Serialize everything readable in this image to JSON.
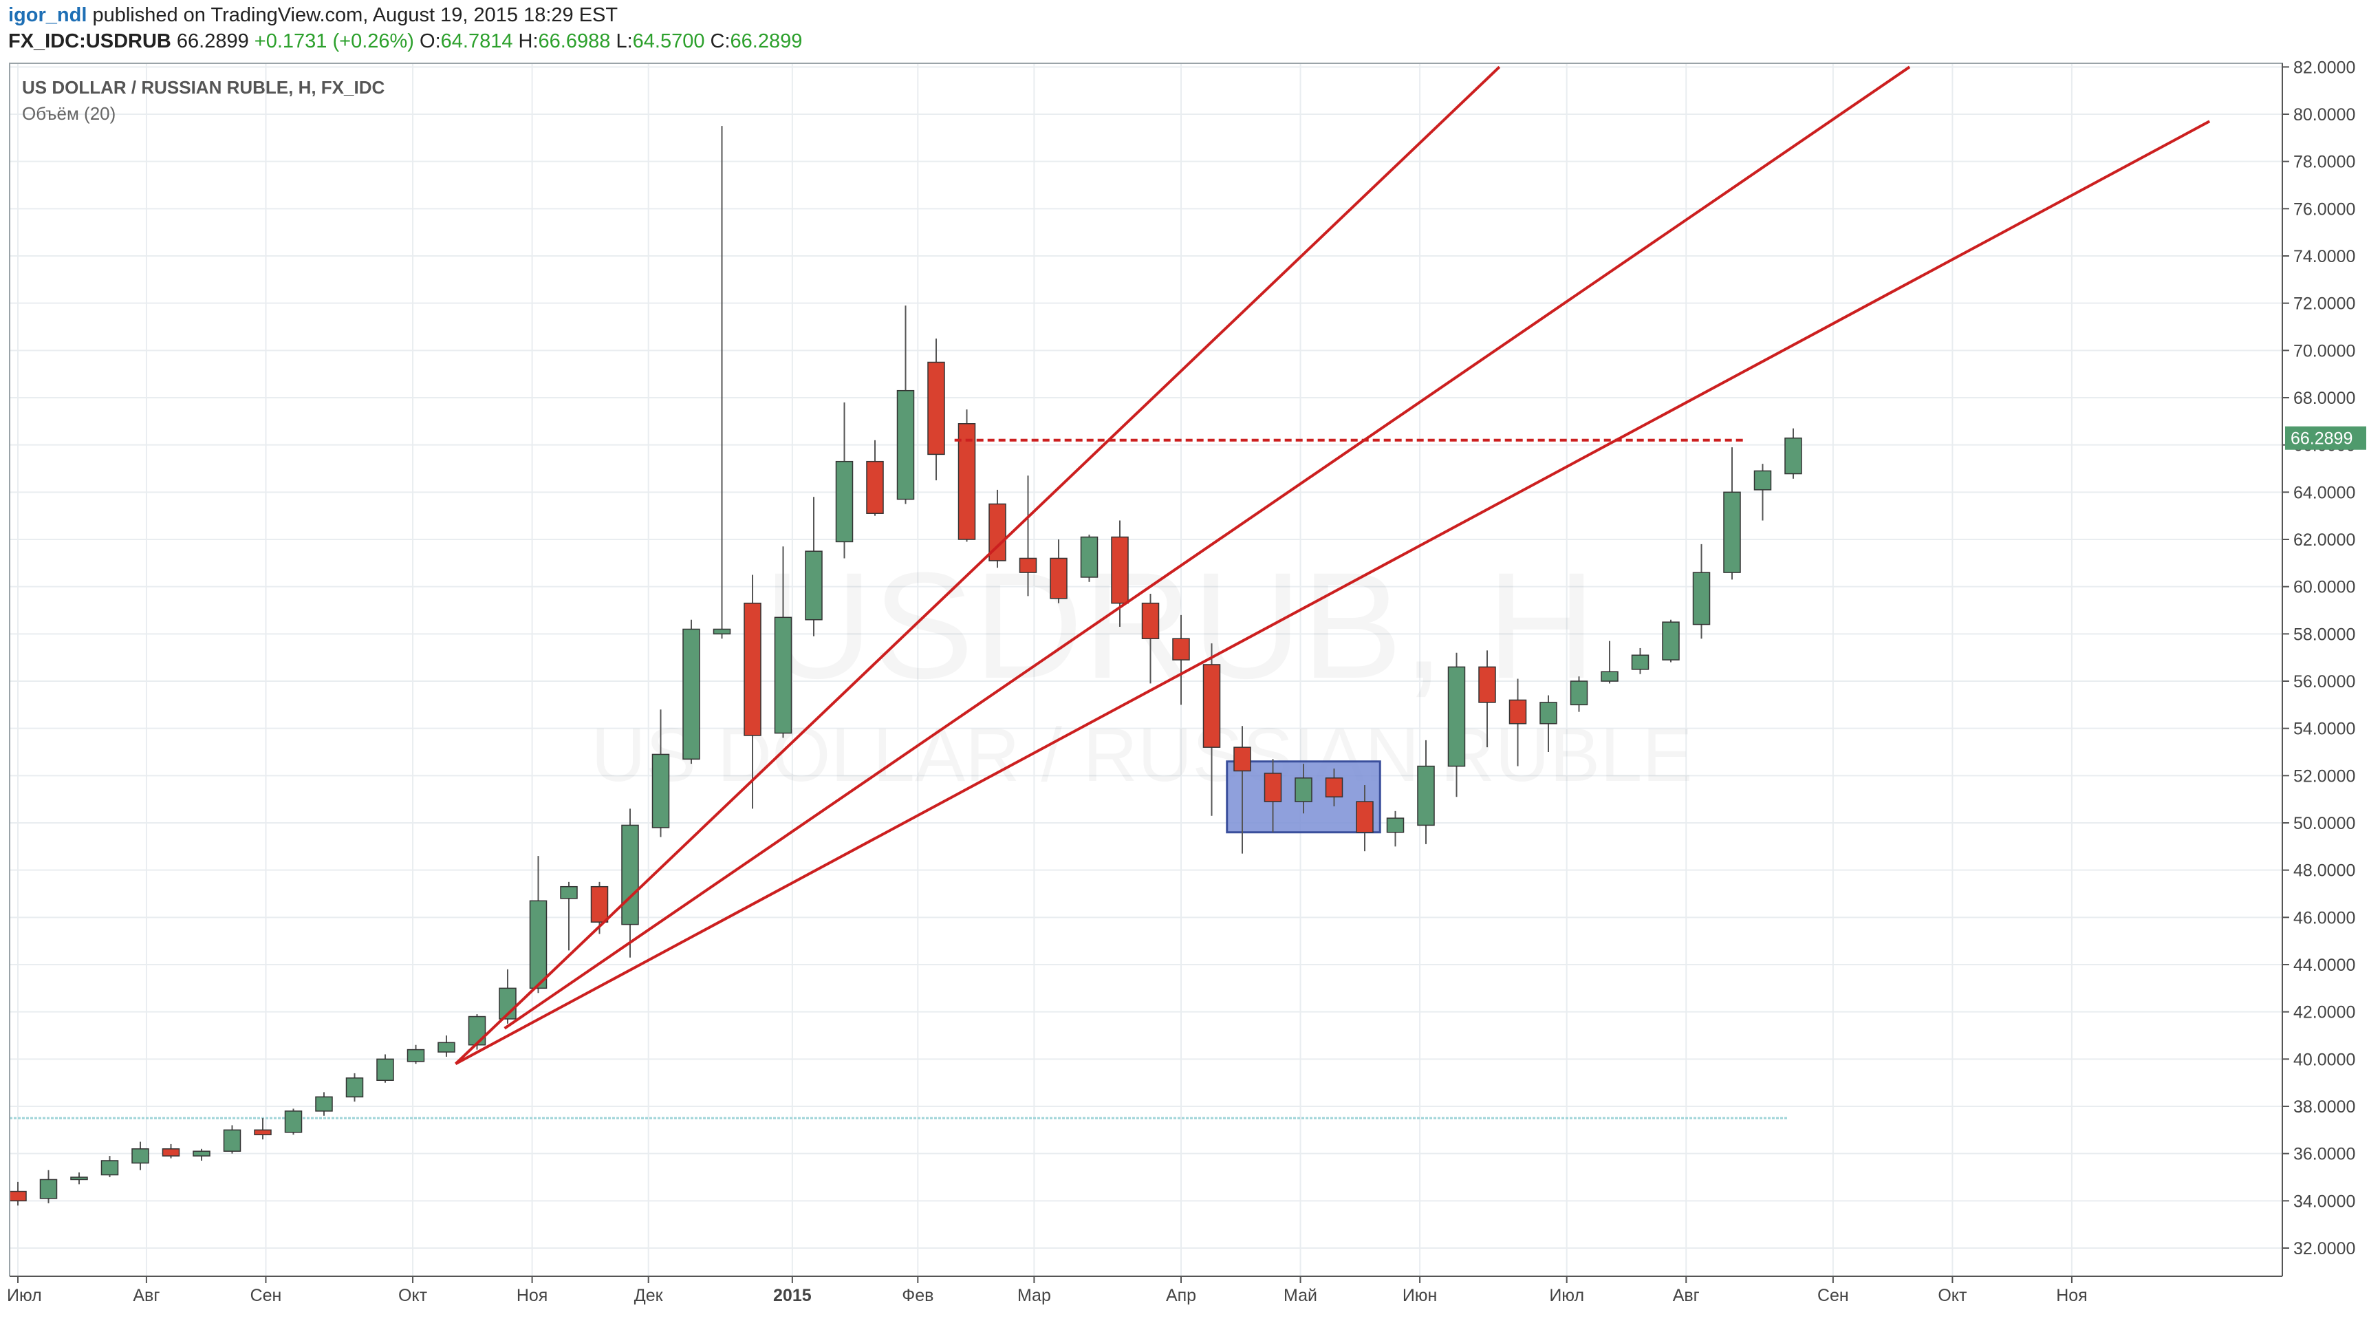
{
  "header": {
    "author": "igor_ndl",
    "published_text": "published on TradingView.com, August 19, 2015 18:29 EST",
    "symbol": "FX_IDC:USDRUB",
    "last": "66.2899",
    "change": "+0.1731 (+0.26%)",
    "o_label": "O:",
    "o_value": "64.7814",
    "h_label": "H:",
    "h_value": "66.6988",
    "l_label": "L:",
    "l_value": "64.5700",
    "c_label": "C:",
    "c_value": "66.2899"
  },
  "legend": {
    "title": "US DOLLAR / RUSSIAN RUBLE, H, FX_IDC",
    "indicator": "Объём (20)"
  },
  "watermark": {
    "symbol": "USDRUB, H",
    "name": "US DOLLAR / RUSSIAN RUBLE"
  },
  "colors": {
    "up": "#5b9a74",
    "down": "#d9412f",
    "trendline": "#cc1f1f",
    "box_fill": "#7b8fd6",
    "price_label_bg": "#4f9a6c"
  },
  "chart_data": {
    "type": "candlestick",
    "title": "US DOLLAR / RUSSIAN RUBLE, H, FX_IDC",
    "ylim": [
      31,
      82
    ],
    "y_ticks": [
      "32.0000",
      "34.0000",
      "36.0000",
      "38.0000",
      "40.0000",
      "42.0000",
      "44.0000",
      "46.0000",
      "48.0000",
      "50.0000",
      "52.0000",
      "54.0000",
      "56.0000",
      "58.0000",
      "60.0000",
      "62.0000",
      "64.0000",
      "66.0000",
      "68.0000",
      "70.0000",
      "72.0000",
      "74.0000",
      "76.0000",
      "78.0000",
      "80.0000",
      "82.0000"
    ],
    "x_ticks": [
      {
        "label": "Июл",
        "bar": 0
      },
      {
        "label": "Авг",
        "bar": 4.2
      },
      {
        "label": "Сен",
        "bar": 8.1
      },
      {
        "label": "Окт",
        "bar": 12.9
      },
      {
        "label": "Ноя",
        "bar": 16.8
      },
      {
        "label": "Дек",
        "bar": 20.6
      },
      {
        "label": "2015",
        "bar": 25.3
      },
      {
        "label": "Фев",
        "bar": 29.4
      },
      {
        "label": "Мар",
        "bar": 33.2
      },
      {
        "label": "Апр",
        "bar": 38.0
      },
      {
        "label": "Май",
        "bar": 41.9
      },
      {
        "label": "Июн",
        "bar": 45.8
      },
      {
        "label": "Июл",
        "bar": 50.6
      },
      {
        "label": "Авг",
        "bar": 54.5
      },
      {
        "label": "Сен",
        "bar": 59.3
      },
      {
        "label": "Окт",
        "bar": 63.2
      },
      {
        "label": "Ноя",
        "bar": 67.1
      }
    ],
    "bars_per_label_spacing": "weekly",
    "candles": [
      {
        "o": 34.4,
        "h": 34.8,
        "l": 33.8,
        "c": 34.0
      },
      {
        "o": 34.1,
        "h": 35.3,
        "l": 33.9,
        "c": 34.9
      },
      {
        "o": 34.9,
        "h": 35.2,
        "l": 34.7,
        "c": 35.0
      },
      {
        "o": 35.1,
        "h": 35.9,
        "l": 35.0,
        "c": 35.7
      },
      {
        "o": 35.6,
        "h": 36.5,
        "l": 35.3,
        "c": 36.2
      },
      {
        "o": 36.2,
        "h": 36.4,
        "l": 35.8,
        "c": 35.9
      },
      {
        "o": 35.9,
        "h": 36.2,
        "l": 35.7,
        "c": 36.1
      },
      {
        "o": 36.1,
        "h": 37.2,
        "l": 36.0,
        "c": 37.0
      },
      {
        "o": 37.0,
        "h": 37.5,
        "l": 36.6,
        "c": 36.8
      },
      {
        "o": 36.9,
        "h": 37.9,
        "l": 36.8,
        "c": 37.8
      },
      {
        "o": 37.8,
        "h": 38.6,
        "l": 37.6,
        "c": 38.4
      },
      {
        "o": 38.4,
        "h": 39.4,
        "l": 38.2,
        "c": 39.2
      },
      {
        "o": 39.1,
        "h": 40.2,
        "l": 39.0,
        "c": 40.0
      },
      {
        "o": 39.9,
        "h": 40.6,
        "l": 39.8,
        "c": 40.4
      },
      {
        "o": 40.3,
        "h": 41.0,
        "l": 40.1,
        "c": 40.7
      },
      {
        "o": 40.6,
        "h": 41.9,
        "l": 40.4,
        "c": 41.8
      },
      {
        "o": 41.7,
        "h": 43.8,
        "l": 41.5,
        "c": 43.0
      },
      {
        "o": 43.0,
        "h": 48.6,
        "l": 42.8,
        "c": 46.7
      },
      {
        "o": 46.8,
        "h": 47.5,
        "l": 44.6,
        "c": 47.3
      },
      {
        "o": 47.3,
        "h": 47.5,
        "l": 45.3,
        "c": 45.8
      },
      {
        "o": 45.7,
        "h": 50.6,
        "l": 44.3,
        "c": 49.9
      },
      {
        "o": 49.8,
        "h": 54.8,
        "l": 49.4,
        "c": 52.9
      },
      {
        "o": 52.7,
        "h": 58.6,
        "l": 52.5,
        "c": 58.2
      },
      {
        "o": 58.0,
        "h": 79.5,
        "l": 57.8,
        "c": 58.2
      },
      {
        "o": 59.3,
        "h": 60.5,
        "l": 50.6,
        "c": 53.7
      },
      {
        "o": 53.8,
        "h": 61.7,
        "l": 53.6,
        "c": 58.7
      },
      {
        "o": 58.6,
        "h": 63.8,
        "l": 57.9,
        "c": 61.5
      },
      {
        "o": 61.9,
        "h": 67.8,
        "l": 61.2,
        "c": 65.3
      },
      {
        "o": 65.3,
        "h": 66.2,
        "l": 63.0,
        "c": 63.1
      },
      {
        "o": 63.7,
        "h": 71.9,
        "l": 63.5,
        "c": 68.3
      },
      {
        "o": 69.5,
        "h": 70.5,
        "l": 64.5,
        "c": 65.6
      },
      {
        "o": 66.9,
        "h": 67.5,
        "l": 61.9,
        "c": 62.0
      },
      {
        "o": 63.5,
        "h": 64.1,
        "l": 60.8,
        "c": 61.1
      },
      {
        "o": 61.2,
        "h": 64.7,
        "l": 59.6,
        "c": 60.6
      },
      {
        "o": 61.2,
        "h": 62.0,
        "l": 59.3,
        "c": 59.5
      },
      {
        "o": 60.4,
        "h": 62.2,
        "l": 60.2,
        "c": 62.1
      },
      {
        "o": 62.1,
        "h": 62.8,
        "l": 58.3,
        "c": 59.3
      },
      {
        "o": 59.3,
        "h": 59.7,
        "l": 55.9,
        "c": 57.8
      },
      {
        "o": 57.8,
        "h": 58.8,
        "l": 55.0,
        "c": 56.9
      },
      {
        "o": 56.7,
        "h": 57.6,
        "l": 50.3,
        "c": 53.2
      },
      {
        "o": 53.2,
        "h": 54.1,
        "l": 48.7,
        "c": 52.2
      },
      {
        "o": 52.1,
        "h": 52.7,
        "l": 49.6,
        "c": 50.9
      },
      {
        "o": 50.9,
        "h": 52.5,
        "l": 50.4,
        "c": 51.9
      },
      {
        "o": 51.9,
        "h": 52.3,
        "l": 50.7,
        "c": 51.1
      },
      {
        "o": 50.9,
        "h": 51.6,
        "l": 48.8,
        "c": 49.6
      },
      {
        "o": 49.6,
        "h": 50.5,
        "l": 49.0,
        "c": 50.2
      },
      {
        "o": 49.9,
        "h": 53.5,
        "l": 49.1,
        "c": 52.4
      },
      {
        "o": 52.4,
        "h": 57.2,
        "l": 51.1,
        "c": 56.6
      },
      {
        "o": 56.6,
        "h": 57.3,
        "l": 53.2,
        "c": 55.1
      },
      {
        "o": 55.2,
        "h": 56.1,
        "l": 52.4,
        "c": 54.2
      },
      {
        "o": 54.2,
        "h": 55.4,
        "l": 53.0,
        "c": 55.1
      },
      {
        "o": 55.0,
        "h": 56.2,
        "l": 54.7,
        "c": 56.0
      },
      {
        "o": 56.0,
        "h": 57.7,
        "l": 55.9,
        "c": 56.4
      },
      {
        "o": 56.5,
        "h": 57.4,
        "l": 56.3,
        "c": 57.1
      },
      {
        "o": 56.9,
        "h": 58.6,
        "l": 56.8,
        "c": 58.5
      },
      {
        "o": 58.4,
        "h": 61.8,
        "l": 57.8,
        "c": 60.6
      },
      {
        "o": 60.6,
        "h": 65.9,
        "l": 60.3,
        "c": 64.0
      },
      {
        "o": 64.1,
        "h": 65.2,
        "l": 62.8,
        "c": 64.9
      },
      {
        "o": 64.78,
        "h": 66.7,
        "l": 64.57,
        "c": 66.29
      }
    ],
    "trendlines": [
      {
        "from": {
          "bar": 14.3,
          "price": 39.8
        },
        "to": {
          "bar": 48.4,
          "price": 82.0
        }
      },
      {
        "from": {
          "bar": 15.9,
          "price": 41.3
        },
        "to": {
          "bar": 61.8,
          "price": 82.0
        }
      },
      {
        "from": {
          "bar": 14.3,
          "price": 39.8
        },
        "to": {
          "bar": 71.6,
          "price": 79.7
        }
      }
    ],
    "dashed_line": {
      "from_bar": 30.6,
      "to_bar": 56.4,
      "price": 66.2
    },
    "range_box": {
      "from_bar": 39.5,
      "to_bar": 44.5,
      "top": 52.6,
      "bottom": 49.6
    },
    "horizontal_level": {
      "price": 37.5,
      "to_bar": 57.8
    },
    "last_price_label": "66.2899"
  }
}
